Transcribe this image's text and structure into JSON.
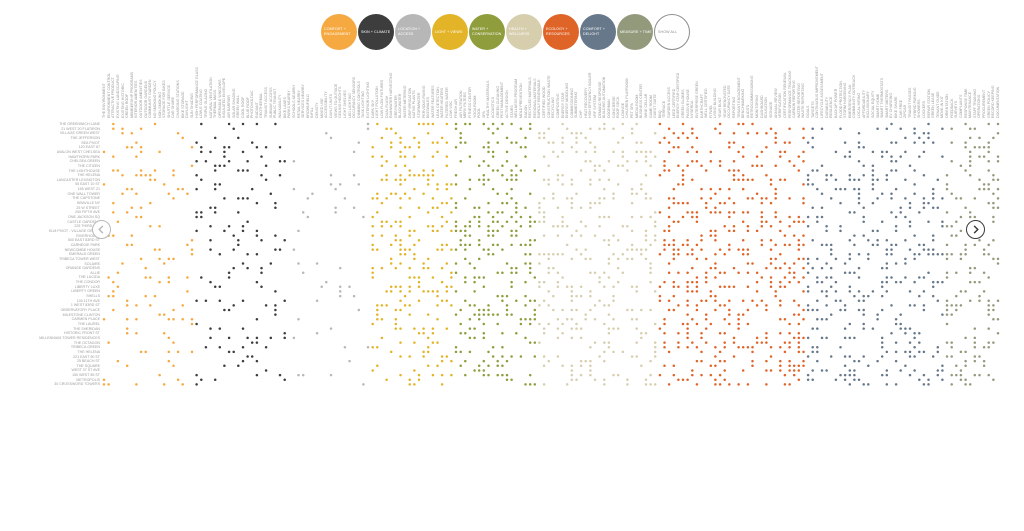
{
  "filters": [
    {
      "label": "COMFORT + ENGAGEMENT",
      "color": "#f5a940"
    },
    {
      "label": "SKIN + CLIMATE",
      "color": "#3d3d3d"
    },
    {
      "label": "LOCATION + ACCESS",
      "color": "#b7b7b7"
    },
    {
      "label": "LIGHT + VIEWS",
      "color": "#e3b428"
    },
    {
      "label": "WATER + CONSERVATION",
      "color": "#8f9d3d"
    },
    {
      "label": "HEALTH + WELLNESS",
      "color": "#d7ceae"
    },
    {
      "label": "ECOLOGY + RESOURCES",
      "color": "#df6428"
    },
    {
      "label": "COMFORT + DELIGHT",
      "color": "#667889"
    },
    {
      "label": "MEASURE + TIME",
      "color": "#939a7c"
    },
    {
      "label": "SHOW ALL",
      "color": "#ffffff"
    }
  ],
  "icons": {
    "prev": "chevron-left-icon",
    "next": "chevron-right-icon"
  },
  "rows": [
    "THE GREENWICH LANE",
    "21 WEST 20 FLATIRON",
    "VILLAGE GREEN WEST",
    "THE JEFFERSON",
    "SEA PIVOT",
    "120 EAST 87",
    "AVALON WEST CHELSEA",
    "HAWTHORN PARK",
    "CHELSEA GREEN",
    "THE CITIZEN",
    "THE LIGHTHOUSE",
    "THE HELENA",
    "LANCASTER LEXINGTON",
    "55 EAST 10 ST",
    "155 WEST 21",
    "ONE WALL TOWER",
    "THE CAPSTONE",
    "BRAVILLE NY",
    "25 W STREET",
    "200 FIFTH AVE",
    "ONE JACKSON SQ",
    "CASTLE GARDENS",
    "225 THIRD AVE",
    "ELM PIVOT - VILLAGE GREEN",
    "RIVERHOUSE",
    "500 EAST 83RD ST",
    "CARNEGIE PARK",
    "NEWCOMBE HOUSE",
    "EMERALD GREEN",
    "TRIBECA TOWER WEST",
    "SOLAIRE",
    "ORANGE GARDENS",
    "ALLIE",
    "THE LUCIDA",
    "THE CONDOR",
    "LIBERTY LUXE",
    "LIBERTY GREEN",
    "SHELLS",
    "100 11TH AVE",
    "1 WEST 83RD ST",
    "OBSERVATORY PLACE",
    "MILESTONE CLINTON",
    "CARMEN PLACE",
    "THE LAUREL",
    "THE SHERIDAN",
    "HISTORIC FRONT ST",
    "MILLENNIUM TOWER RESIDENCES",
    "THE OCTAGON",
    "TRIBECA GREEN",
    "THE HELENA",
    "221 EAST 90 ST",
    "25 BEACH ST",
    "THE SQUARE",
    "WEST 37 ST AVE",
    "150 WEST 85 ST",
    "METROPOLIS",
    "30 CROSSWORD TOWERS"
  ],
  "columns": [
    "THE ENVIRONMENT",
    "ENVIRONMENT CONTROL",
    "ATTRACTIVE PRODUCT",
    "EXISTING LANDSCAPING",
    "EXISTING HISTORIC",
    "GREEN ROOF",
    "MEMBERSHIP PROGRAMS",
    "INTERIOR AMENITIES",
    "OUTDOOR AMENITIES",
    "OUTDOOR GARDENS",
    "COMMUNITY GARDEN",
    "NO SMOKING POLICY",
    "NON-SMOKING",
    "STORAGE FOR BIKES",
    "SHUTTLE SERVICE",
    "CAR SHARE",
    "CHARGING STATIONS",
    "BIKE STORAGE",
    "DAYLIGHT",
    "SUN SHADING",
    "HIGH PERFORMANCE GLASS",
    "LOW-E COATING",
    "TRIPLE GLAZING",
    "NATURAL VENTILATION",
    "THERMAL MASS",
    "OPERABLE WINDOWS",
    "INSULATED ENVELOPE",
    "AIR BARRIER",
    "SOLAR SHADING",
    "GREEN WALL",
    "COOL ROOF",
    "BLUE ROOF",
    "PHOTOVOLTAIC",
    "RADIANT",
    "GEOTHERMAL",
    "TRANSIT ACCESS",
    "SUBWAY ACCESS",
    "PUBLIC TRANSIT",
    "WALKABILITY",
    "BIKE LANES",
    "PARKS NEARBY",
    "SCHOOLS NEARBY",
    "RETAIL NEARBY",
    "SERVICES NEARBY",
    "BROWNFIELD",
    "INFILL",
    "DENSITY",
    "MIXED USE",
    "ACCESSIBILITY",
    "DAYLIT UNITS",
    "VIEWS TO OUTSIDE",
    "CEILING HEIGHTS",
    "LIGHT SHELVES",
    "LED LIGHTING",
    "OCCUPANCY SENSORS",
    "DIMMING CONTROLS",
    "TASK LIGHTING",
    "EXTERIOR LIGHTING",
    "DARK SKY",
    "LIGHT POLLUTION",
    "LOW FLOW FIXTURES",
    "DUAL FLUSH",
    "RAINWATER HARVESTING",
    "GREYWATER",
    "BLACKWATER",
    "WATER METERING",
    "DRIP IRRIGATION",
    "NATIVE PLANTS",
    "STORMWATER",
    "PERVIOUS PAVING",
    "BIOSWALES",
    "WATER FEATURES",
    "LEAK DETECTION",
    "WATER HEATERS",
    "FILTERED WATER",
    "LOW VOC",
    "FRESH AIR",
    "AIR FILTRATION",
    "MERV FILTERS",
    "FITNESS CENTER",
    "YOGA ROOM",
    "POOL",
    "SPA",
    "HEALTHY MATERIALS",
    "ACOUSTICS",
    "GREEN CLEANING",
    "PEST MANAGEMENT",
    "ACTIVE DESIGN",
    "STAIRS",
    "WELLNESS PROGRAM",
    "MOLD PREVENTION",
    "RADON",
    "RECYCLED MATERIALS",
    "REGIONAL MATERIALS",
    "RAPIDLY RENEWABLE",
    "CERTIFIED WOOD",
    "CONSTRUCTION WASTE",
    "RECYCLING",
    "COMPOSTING",
    "ENERGY STAR",
    "ENERGY MODELING",
    "COMMISSIONING",
    "SUBMETERING",
    "CHP",
    "HEAT RECOVERY",
    "HIGH EFFICIENCY BOILER",
    "VRF SYSTEM",
    "DEMAND RESPONSE",
    "BUILDING AUTOMATION",
    "DOORMAN",
    "CONCIERGE",
    "ROOF DECK",
    "LOUNGE",
    "CHILDREN PLAYROOM",
    "PET SPA",
    "MEDIA ROOM",
    "BUSINESS CENTER",
    "WINE CELLAR",
    "GAME ROOM",
    "GUEST SUITE",
    "BBQ",
    "TERRACE",
    "GARDEN ACCESS",
    "LEED CERTIFIED",
    "ENERGY STAR CERTIFIED",
    "GREEN GLOBES",
    "PASSIVE HOUSE",
    "NYSERDA",
    "ENTERPRISE GREEN",
    "EARTHCRAFT",
    "WELL CERTIFIED",
    "FITWEL",
    "LIVING BUILDING",
    "YEAR BUILT",
    "YEAR RENOVATED",
    "OCCUPANCY DATE",
    "REPORTING",
    "TENANT ENGAGEMENT",
    "BENCHMARKING",
    "AUDITS",
    "RETROCOMMISSIONING",
    "MONITORING",
    "DASHBOARD",
    "EDUCATION",
    "SIGNAGE",
    "ANNUAL REVIEW",
    "VERIFICATION",
    "CERTIFICATION RENEWAL",
    "PERFORMANCE TRACKING",
    "CARBON REPORTING",
    "WATER REPORTING",
    "WASTE REPORTING",
    "GOALS",
    "TARGETS",
    "CONTINUOUS IMPROVEMENT",
    "LIFECYCLE ASSESSMENT",
    "DURABILITY",
    "RESILIENCE",
    "BACKUP POWER",
    "FLOOD PROTECTION",
    "STORM HARDENING",
    "EMERGENCY PLAN",
    "COMMUNITY OUTREACH",
    "LOCAL HIRING",
    "AFFORDABILITY",
    "INCLUSIONARY",
    "SOCIAL EQUITY",
    "SMART HOME",
    "SMART THERMOSTATS",
    "SMART METERS",
    "EV CHARGING",
    "BIKE SHARE",
    "CAR FREE",
    "ZIPCAR",
    "TRANSIT PASSES",
    "HYBRID PARKING",
    "SHOWERS",
    "LOCKERS",
    "REPAIR STATION",
    "GREEN LEASE",
    "TENANT GUIDE",
    "MOVE-IN KIT",
    "ORIENTATION",
    "FEEDBACK",
    "SURVEYS",
    "COMPLAINTS",
    "RESPONSE TIME",
    "MAINTENANCE",
    "STAFF TRAINING",
    "OPERATIONS",
    "PROCUREMENT",
    "GREEN POLICY",
    "RECORD KEEPING",
    "DOCUMENTATION"
  ]
}
